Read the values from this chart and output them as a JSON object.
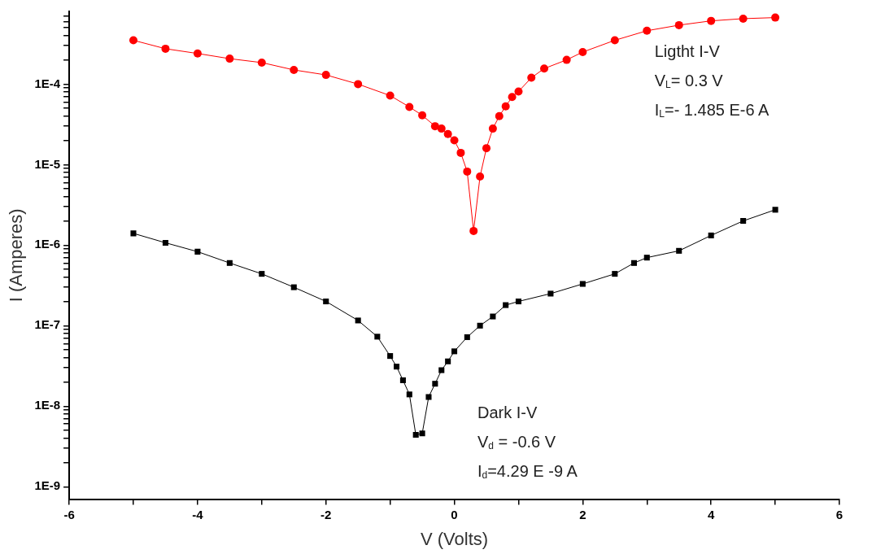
{
  "chart_data": {
    "type": "line",
    "xlabel": "V (Volts)",
    "ylabel": "I (Amperes)",
    "log": "y",
    "grid": false,
    "legend": false,
    "line_style": "solid",
    "xlim": [
      -6,
      6
    ],
    "xticks": [
      -6,
      {
        "value": -5,
        "label": null
      },
      -4,
      {
        "value": -3,
        "label": null
      },
      -2,
      {
        "value": -1,
        "label": null
      },
      0,
      {
        "value": 1,
        "label": null
      },
      2,
      {
        "value": 3,
        "label": null
      },
      4,
      {
        "value": 5,
        "label": null
      },
      6
    ],
    "ylim": [
      7e-10,
      0.0008
    ],
    "yticks": [
      {
        "value": 1e-09,
        "label": "1E-9"
      },
      {
        "value": 2e-09,
        "label": null
      },
      {
        "value": 3e-09,
        "label": null
      },
      {
        "value": 4e-09,
        "label": null
      },
      {
        "value": 5e-09,
        "label": null
      },
      {
        "value": 6e-09,
        "label": null
      },
      {
        "value": 7e-09,
        "label": null
      },
      {
        "value": 8e-09,
        "label": null
      },
      {
        "value": 9e-09,
        "label": null
      },
      {
        "value": 1e-08,
        "label": "1E-8"
      },
      {
        "value": 2e-08,
        "label": null
      },
      {
        "value": 3e-08,
        "label": null
      },
      {
        "value": 4e-08,
        "label": null
      },
      {
        "value": 5e-08,
        "label": null
      },
      {
        "value": 6e-08,
        "label": null
      },
      {
        "value": 7e-08,
        "label": null
      },
      {
        "value": 8e-08,
        "label": null
      },
      {
        "value": 9e-08,
        "label": null
      },
      {
        "value": 1e-07,
        "label": "1E-7"
      },
      {
        "value": 2e-07,
        "label": null
      },
      {
        "value": 3e-07,
        "label": null
      },
      {
        "value": 4e-07,
        "label": null
      },
      {
        "value": 5e-07,
        "label": null
      },
      {
        "value": 6e-07,
        "label": null
      },
      {
        "value": 7e-07,
        "label": null
      },
      {
        "value": 8e-07,
        "label": null
      },
      {
        "value": 9e-07,
        "label": null
      },
      {
        "value": 1e-06,
        "label": "1E-6"
      },
      {
        "value": 2e-06,
        "label": null
      },
      {
        "value": 3e-06,
        "label": null
      },
      {
        "value": 4e-06,
        "label": null
      },
      {
        "value": 5e-06,
        "label": null
      },
      {
        "value": 6e-06,
        "label": null
      },
      {
        "value": 7e-06,
        "label": null
      },
      {
        "value": 8e-06,
        "label": null
      },
      {
        "value": 9e-06,
        "label": null
      },
      {
        "value": 1e-05,
        "label": "1E-5"
      },
      {
        "value": 2e-05,
        "label": null
      },
      {
        "value": 3e-05,
        "label": null
      },
      {
        "value": 4e-05,
        "label": null
      },
      {
        "value": 5e-05,
        "label": null
      },
      {
        "value": 6e-05,
        "label": null
      },
      {
        "value": 7e-05,
        "label": null
      },
      {
        "value": 8e-05,
        "label": null
      },
      {
        "value": 9e-05,
        "label": null
      },
      {
        "value": 0.0001,
        "label": "1E-4"
      },
      {
        "value": 0.0002,
        "label": null
      },
      {
        "value": 0.0003,
        "label": null
      },
      {
        "value": 0.0004,
        "label": null
      },
      {
        "value": 0.0005,
        "label": null
      },
      {
        "value": 0.0006,
        "label": null
      },
      {
        "value": 0.0007,
        "label": null
      }
    ],
    "annotations": [
      "Ligtht I-V",
      "V$_{L}$= 0.3 V",
      "I$_{L}$=- 1.485 E-6 A",
      "Dark I-V",
      "V$_{d}$ = -0.6 V",
      "I$_{d}$=4.29 E -9 A"
    ],
    "series": [
      {
        "color": "#ff0000",
        "marker": "circle",
        "x": [
          -5,
          -4.5,
          -4,
          -3.5,
          -3,
          -2.5,
          -2,
          -1.5,
          -1,
          -0.7,
          -0.5,
          -0.3,
          -0.2,
          -0.1,
          0,
          0.1,
          0.2,
          0.3,
          0.4,
          0.5,
          0.6,
          0.7,
          0.8,
          0.9,
          1,
          1.2,
          1.4,
          1.75,
          2,
          2.5,
          3,
          3.5,
          4,
          4.5,
          5
        ],
        "values": [
          0.00035,
          0.000275,
          0.00024,
          0.000207,
          0.000185,
          0.00015,
          0.00013,
          0.0001,
          7.2e-05,
          5.2e-05,
          4.1e-05,
          3e-05,
          2.8e-05,
          2.4e-05,
          2e-05,
          1.4e-05,
          8.2e-06,
          1.5e-06,
          7.1e-06,
          1.6e-05,
          2.8e-05,
          4e-05,
          5.3e-05,
          6.9e-05,
          8.1e-05,
          0.00012,
          0.000156,
          0.0002,
          0.00025,
          0.00035,
          0.00046,
          0.00054,
          0.00061,
          0.00065,
          0.00067
        ]
      },
      {
        "color": "#000000",
        "marker": "square",
        "x": [
          -5,
          -4.5,
          -4,
          -3.5,
          -3,
          -2.5,
          -2,
          -1.5,
          -1.2,
          -1,
          -0.9,
          -0.8,
          -0.7,
          -0.6,
          -0.5,
          -0.4,
          -0.3,
          -0.2,
          -0.1,
          0,
          0.2,
          0.4,
          0.6,
          0.8,
          1,
          1.5,
          2,
          2.5,
          2.8,
          3,
          3.5,
          4,
          4.5,
          5
        ],
        "values": [
          1.4e-06,
          1.07e-06,
          8.3e-07,
          6e-07,
          4.4e-07,
          3e-07,
          2e-07,
          1.16e-07,
          7.3e-08,
          4.2e-08,
          3.1e-08,
          2.1e-08,
          1.4e-08,
          4.4e-09,
          4.6e-09,
          1.3e-08,
          1.9e-08,
          2.8e-08,
          3.6e-08,
          4.8e-08,
          7.2e-08,
          1e-07,
          1.3e-07,
          1.8e-07,
          2e-07,
          2.5e-07,
          3.3e-07,
          4.4e-07,
          6e-07,
          7e-07,
          8.5e-07,
          1.32e-06,
          2e-06,
          2.75e-06
        ]
      }
    ]
  }
}
